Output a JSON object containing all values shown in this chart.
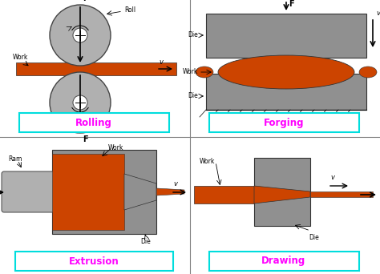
{
  "background_color": "#ffffff",
  "gray_color": "#909090",
  "light_gray": "#b0b0b0",
  "work_color": "#CC4400",
  "cyan_box_color": "#00DDDD",
  "magenta_text": "#FF00FF",
  "labels": {
    "rolling": "Rolling",
    "forging": "Forging",
    "extrusion": "Extrusion",
    "drawing": "Drawing"
  }
}
